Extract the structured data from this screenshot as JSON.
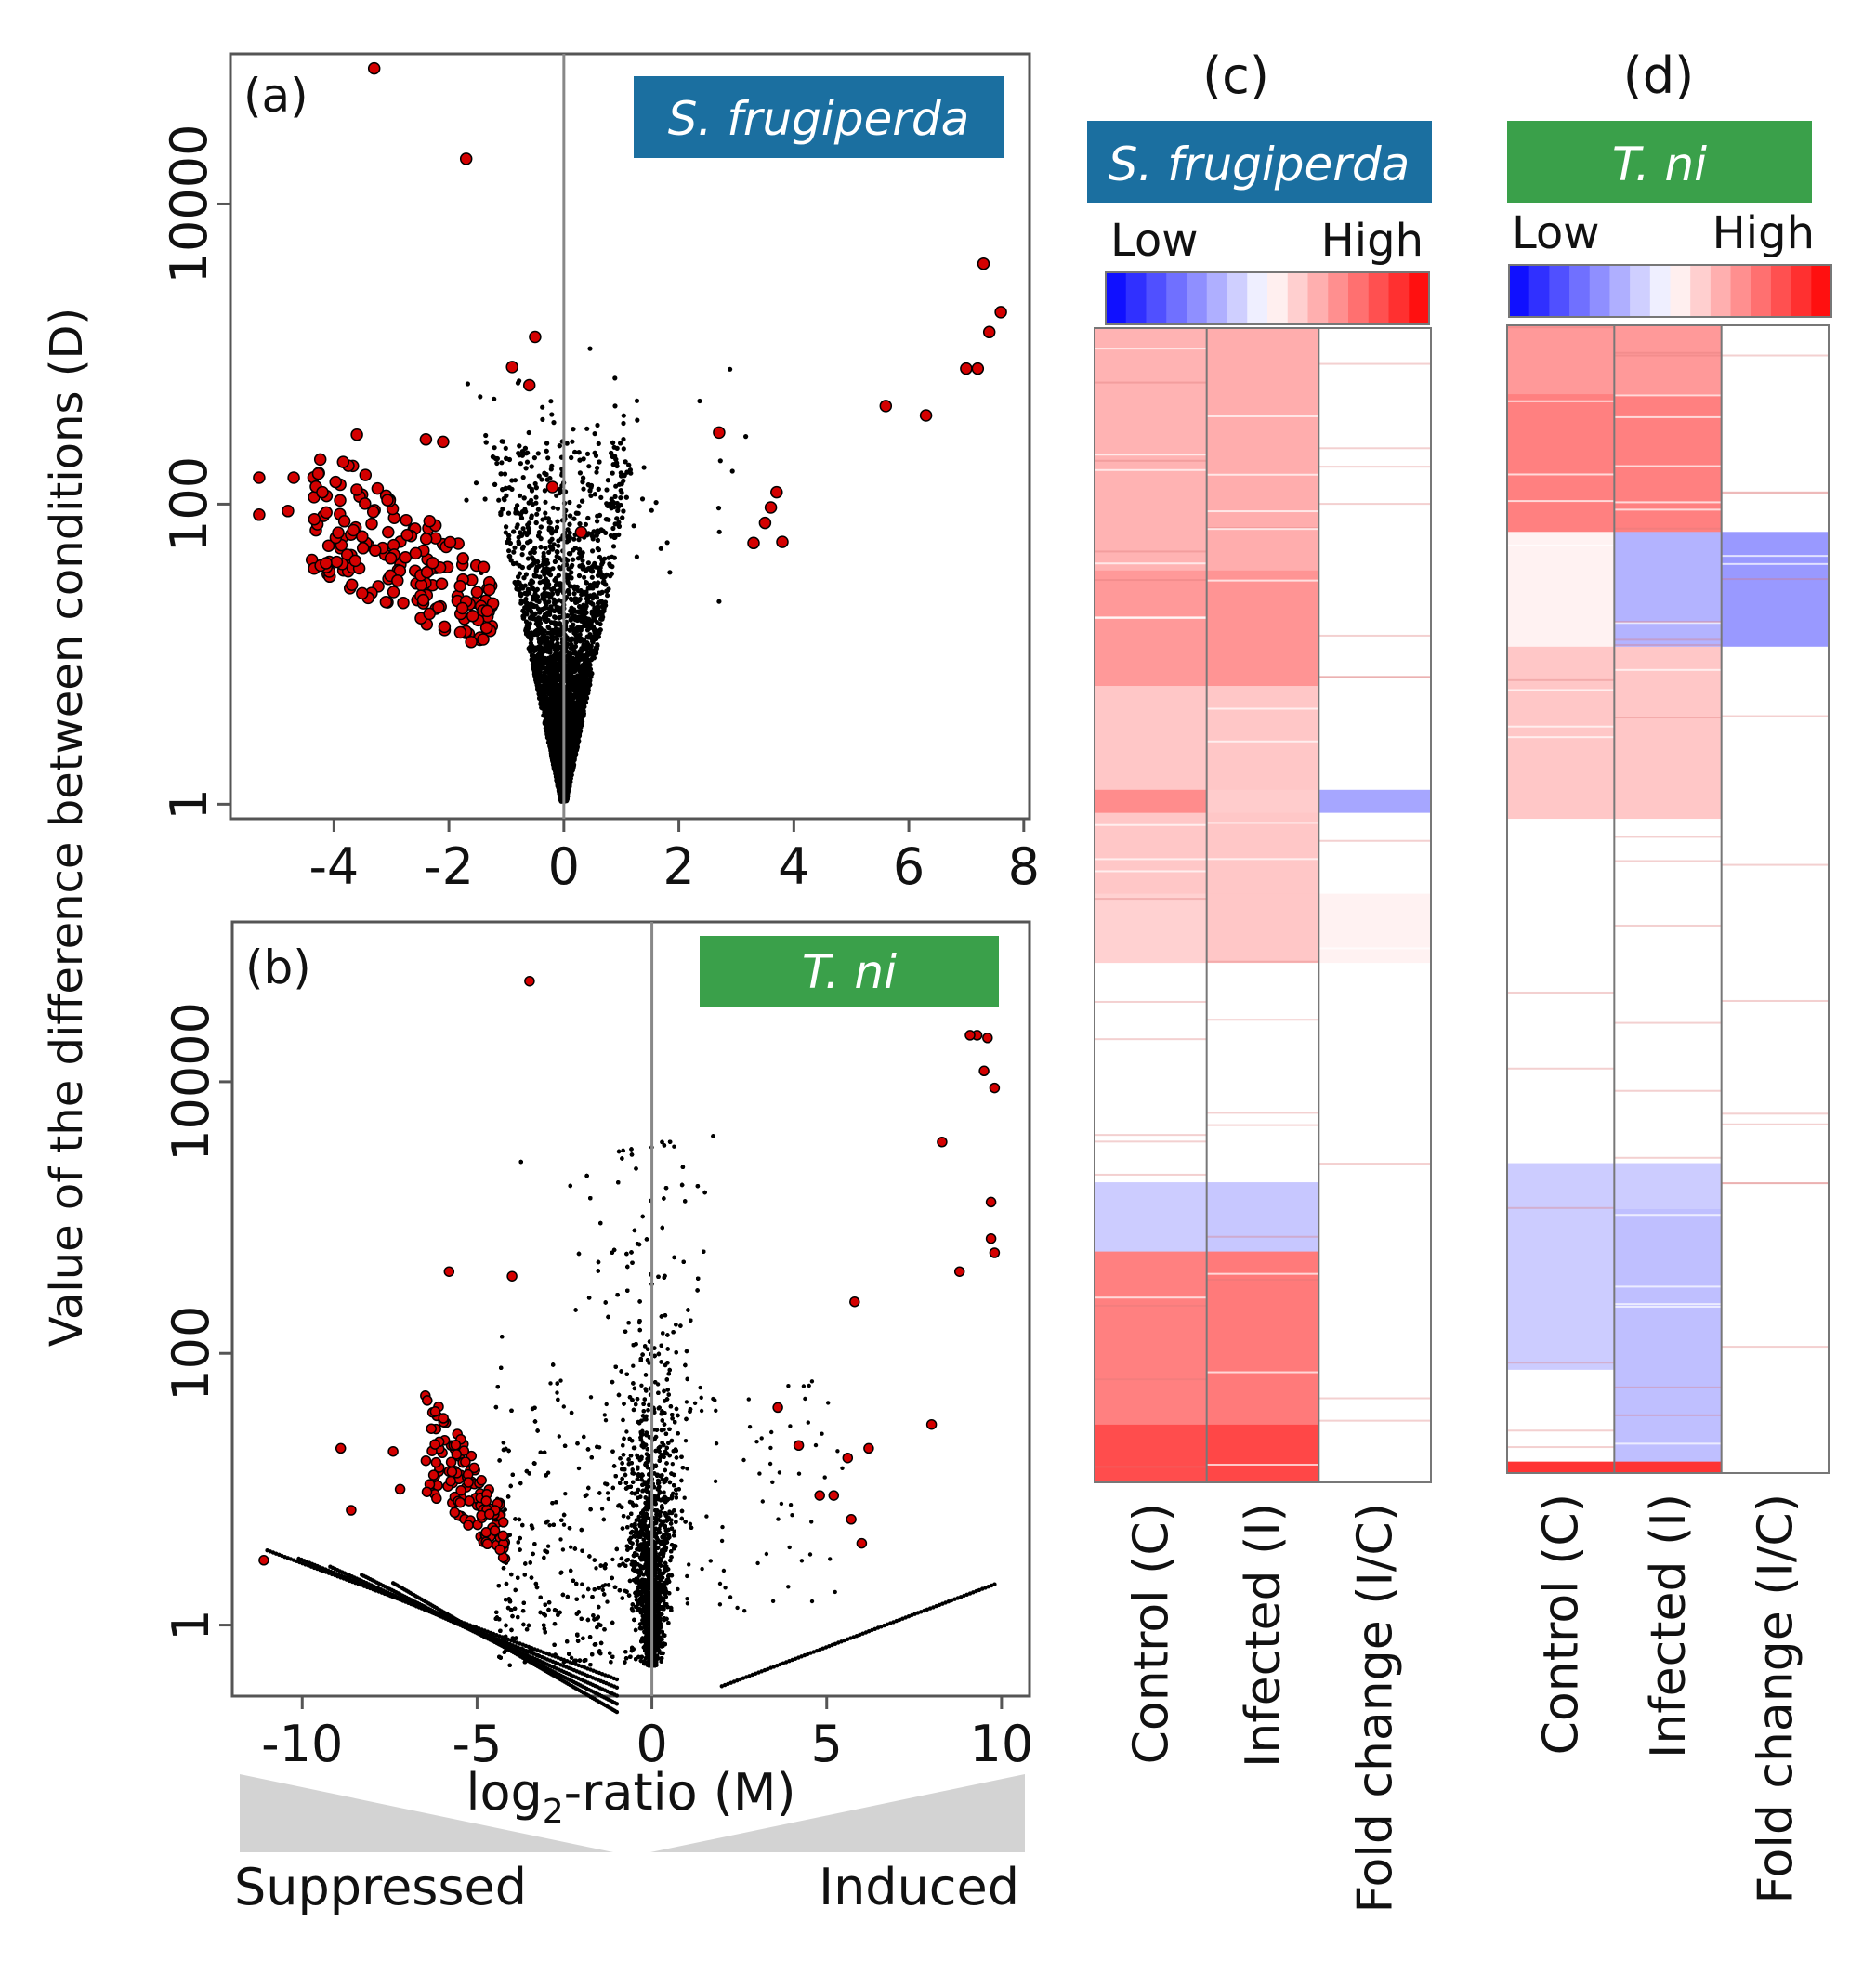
{
  "figure": {
    "ylabel": "Value of the difference between conditions (D)",
    "suppressed_label": "Suppressed",
    "induced_label": "Induced",
    "colors": {
      "point": "#000000",
      "highlight": "#d40000",
      "sf_badge": "#1b6fa0",
      "tn_badge": "#3aa04a",
      "axis": "#555555"
    }
  },
  "chart_data": [
    {
      "type": "scatter",
      "panel": "(a)",
      "species": "S. frugiperda",
      "xlabel": "",
      "ylabel": "Value of the difference between conditions (D)",
      "yscale": "log",
      "xlim": [
        -5.8,
        8.1
      ],
      "ylim": [
        0.8,
        100000
      ],
      "xticks": [
        "-4",
        "-2",
        "0",
        "2",
        "4",
        "6",
        "8"
      ],
      "yticks": [
        "1",
        "100",
        "10000"
      ],
      "highlighted_points": [
        {
          "x": -3.3,
          "y": 80000
        },
        {
          "x": -1.7,
          "y": 20000
        },
        {
          "x": 7.3,
          "y": 4000
        },
        {
          "x": 7.6,
          "y": 1900
        },
        {
          "x": 7.4,
          "y": 1400
        },
        {
          "x": 7.0,
          "y": 800
        },
        {
          "x": 7.2,
          "y": 800
        },
        {
          "x": 5.6,
          "y": 450
        },
        {
          "x": 6.3,
          "y": 390
        },
        {
          "x": 2.7,
          "y": 300
        },
        {
          "x": 3.7,
          "y": 120
        },
        {
          "x": 3.6,
          "y": 95
        },
        {
          "x": 3.5,
          "y": 75
        },
        {
          "x": 3.3,
          "y": 55
        },
        {
          "x": 3.8,
          "y": 56
        },
        {
          "x": -5.3,
          "y": 150
        },
        {
          "x": -5.3,
          "y": 85
        },
        {
          "x": -4.7,
          "y": 150
        },
        {
          "x": -4.8,
          "y": 90
        },
        {
          "x": -4.2,
          "y": 120
        },
        {
          "x": -3.6,
          "y": 290
        },
        {
          "x": -2.4,
          "y": 270
        },
        {
          "x": -2.1,
          "y": 260
        },
        {
          "x": -0.5,
          "y": 1300
        },
        {
          "x": -0.9,
          "y": 820
        },
        {
          "x": -0.6,
          "y": 620
        },
        {
          "x": -0.2,
          "y": 130
        },
        {
          "x": 0.3,
          "y": 65
        }
      ],
      "highlighted_cluster": {
        "x_range": [
          -4.4,
          -1.2
        ],
        "y_range": [
          10,
          300
        ],
        "approx_count": 180
      },
      "background_cloud": {
        "description": "V-shaped cloud of non-significant genes centred at M=0",
        "approx_count": 6000
      }
    },
    {
      "type": "scatter",
      "panel": "(b)",
      "species": "T. ni",
      "xlabel": "log2-ratio (M)",
      "xlabel_main": "log",
      "xlabel_sub": "2",
      "xlabel_rest": "-ratio (M)",
      "ylabel": "Value of the difference between conditions (D)",
      "yscale": "log",
      "xlim": [
        -12.0,
        10.8
      ],
      "ylim": [
        0.3,
        150000
      ],
      "xticks": [
        "-10",
        "-5",
        "0",
        "5",
        "10"
      ],
      "yticks": [
        "1",
        "100",
        "10000"
      ],
      "highlighted_points": [
        {
          "x": -3.5,
          "y": 55000
        },
        {
          "x": 9.3,
          "y": 22000
        },
        {
          "x": 9.6,
          "y": 21000
        },
        {
          "x": 9.1,
          "y": 22000
        },
        {
          "x": 9.5,
          "y": 12000
        },
        {
          "x": 9.8,
          "y": 9000
        },
        {
          "x": 8.3,
          "y": 3600
        },
        {
          "x": 9.7,
          "y": 1300
        },
        {
          "x": 9.7,
          "y": 700
        },
        {
          "x": 9.8,
          "y": 550
        },
        {
          "x": 8.8,
          "y": 400
        },
        {
          "x": 5.8,
          "y": 240
        },
        {
          "x": -5.8,
          "y": 400
        },
        {
          "x": -4.0,
          "y": 370
        },
        {
          "x": 3.6,
          "y": 40
        },
        {
          "x": 4.2,
          "y": 21
        },
        {
          "x": 4.8,
          "y": 9
        },
        {
          "x": 5.2,
          "y": 9
        },
        {
          "x": 5.6,
          "y": 17
        },
        {
          "x": 6.2,
          "y": 20
        },
        {
          "x": 5.7,
          "y": 6
        },
        {
          "x": 6.0,
          "y": 4
        },
        {
          "x": 8.0,
          "y": 30
        },
        {
          "x": -8.9,
          "y": 20
        },
        {
          "x": -8.6,
          "y": 7
        },
        {
          "x": -11.1,
          "y": 3
        },
        {
          "x": -7.4,
          "y": 19
        },
        {
          "x": -7.2,
          "y": 10
        }
      ],
      "highlighted_cluster": {
        "x_range": [
          -6.5,
          -4.2
        ],
        "y_range": [
          3,
          60
        ],
        "approx_count": 140
      },
      "background_cloud": {
        "description": "Funnel-shaped cloud of non-significant genes centred at M=0 with low-D curved tails",
        "approx_count": 9000
      }
    },
    {
      "type": "heatmap",
      "panel": "(c)",
      "species": "S. frugiperda",
      "legend_low": "Low",
      "legend_high": "High",
      "columns": [
        "Control (C)",
        "Infected (I)",
        "Fold change (I/C)"
      ],
      "color_scale": {
        "low": "#0000ff",
        "mid": "#ffffff",
        "high": "#ff0000"
      },
      "bands": [
        {
          "start": 0.0,
          "end": 0.21,
          "values": [
            0.3,
            0.32,
            0.0
          ]
        },
        {
          "start": 0.21,
          "end": 0.31,
          "values": [
            0.4,
            0.42,
            0.0
          ]
        },
        {
          "start": 0.31,
          "end": 0.4,
          "values": [
            0.22,
            0.22,
            0.0
          ]
        },
        {
          "start": 0.4,
          "end": 0.42,
          "values": [
            0.45,
            0.2,
            -0.35
          ]
        },
        {
          "start": 0.42,
          "end": 0.49,
          "values": [
            0.22,
            0.22,
            0.0
          ]
        },
        {
          "start": 0.49,
          "end": 0.55,
          "values": [
            0.18,
            0.22,
            0.05
          ]
        },
        {
          "start": 0.55,
          "end": 0.74,
          "values": [
            0.0,
            0.0,
            0.0
          ]
        },
        {
          "start": 0.74,
          "end": 0.8,
          "values": [
            -0.2,
            -0.22,
            0.0
          ]
        },
        {
          "start": 0.8,
          "end": 0.95,
          "values": [
            0.5,
            0.52,
            0.0
          ]
        },
        {
          "start": 0.95,
          "end": 1.0,
          "values": [
            0.7,
            0.72,
            0.0
          ]
        }
      ]
    },
    {
      "type": "heatmap",
      "panel": "(d)",
      "species": "T. ni",
      "legend_low": "Low",
      "legend_high": "High",
      "columns": [
        "Control (C)",
        "Infected (I)",
        "Fold change (I/C)"
      ],
      "color_scale": {
        "low": "#0000ff",
        "mid": "#ffffff",
        "high": "#ff0000"
      },
      "bands": [
        {
          "start": 0.0,
          "end": 0.06,
          "values": [
            0.4,
            0.4,
            0.0
          ]
        },
        {
          "start": 0.06,
          "end": 0.18,
          "values": [
            0.5,
            0.5,
            0.0
          ]
        },
        {
          "start": 0.18,
          "end": 0.28,
          "values": [
            0.05,
            -0.3,
            -0.4
          ]
        },
        {
          "start": 0.28,
          "end": 0.43,
          "values": [
            0.22,
            0.22,
            0.0
          ]
        },
        {
          "start": 0.43,
          "end": 0.73,
          "values": [
            0.0,
            0.0,
            0.0
          ]
        },
        {
          "start": 0.73,
          "end": 0.77,
          "values": [
            -0.2,
            -0.2,
            0.0
          ]
        },
        {
          "start": 0.77,
          "end": 0.91,
          "values": [
            -0.2,
            -0.25,
            0.0
          ]
        },
        {
          "start": 0.91,
          "end": 0.99,
          "values": [
            0.0,
            -0.25,
            0.0
          ]
        },
        {
          "start": 0.99,
          "end": 1.0,
          "values": [
            0.8,
            0.8,
            0.0
          ]
        }
      ]
    }
  ]
}
